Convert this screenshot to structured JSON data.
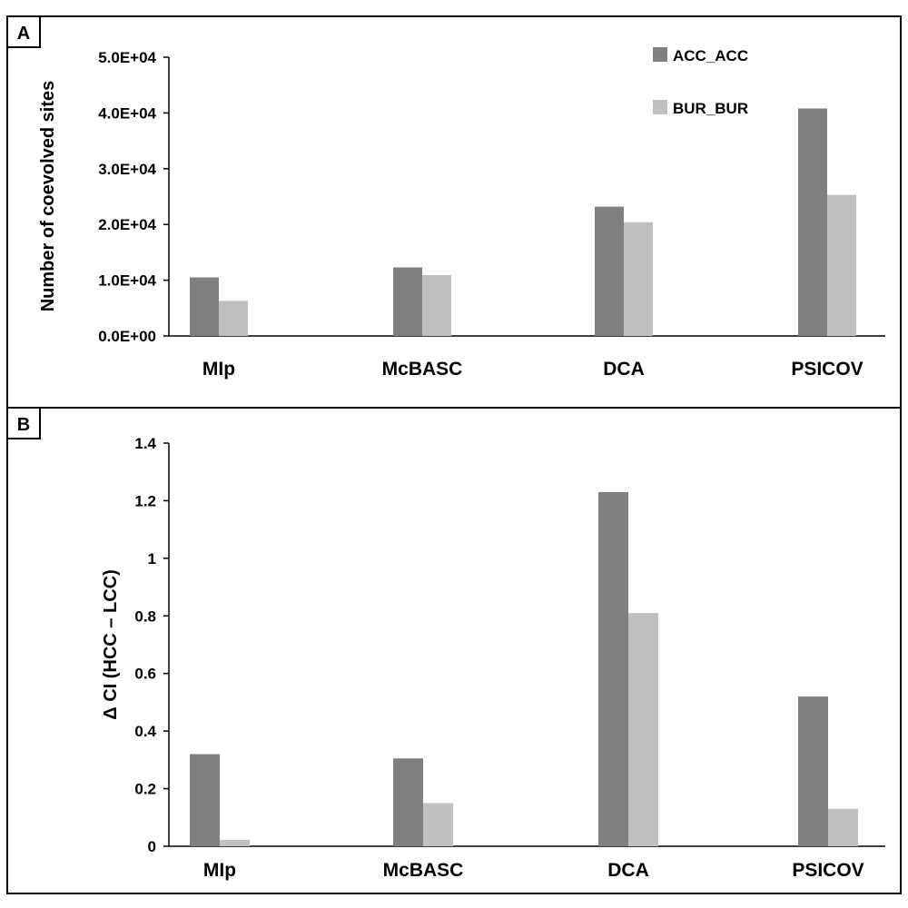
{
  "chart_data": [
    {
      "panel_label": "A",
      "type": "bar",
      "categories": [
        "MIp",
        "McBASC",
        "DCA",
        "PSICOV"
      ],
      "series": [
        {
          "name": "ACC_ACC",
          "values": [
            10500,
            12300,
            23200,
            40800
          ],
          "color": "#808080"
        },
        {
          "name": "BUR_BUR",
          "values": [
            6300,
            10900,
            20400,
            25300
          ],
          "color": "#c0c0c0"
        }
      ],
      "ylabel": "Number of coevolved sites",
      "yticks": [
        "0.0E+00",
        "1.0E+04",
        "2.0E+04",
        "3.0E+04",
        "4.0E+04",
        "5.0E+04"
      ],
      "ylim": [
        0,
        50000
      ],
      "grid": false,
      "legend": "top-right"
    },
    {
      "panel_label": "B",
      "type": "bar",
      "categories": [
        "MIp",
        "McBASC",
        "DCA",
        "PSICOV"
      ],
      "series": [
        {
          "values": [
            0.32,
            0.305,
            1.23,
            0.52
          ],
          "color": "#808080"
        },
        {
          "values": [
            0.022,
            0.15,
            0.81,
            0.13
          ],
          "color": "#c0c0c0"
        }
      ],
      "ylabel": "Δ CI (HCC – LCC)",
      "yticks": [
        "0",
        "0.2",
        "0.4",
        "0.6",
        "0.8",
        "1",
        "1.2",
        "1.4"
      ],
      "ylim": [
        0,
        1.4
      ],
      "grid": false,
      "legend": "none"
    }
  ]
}
